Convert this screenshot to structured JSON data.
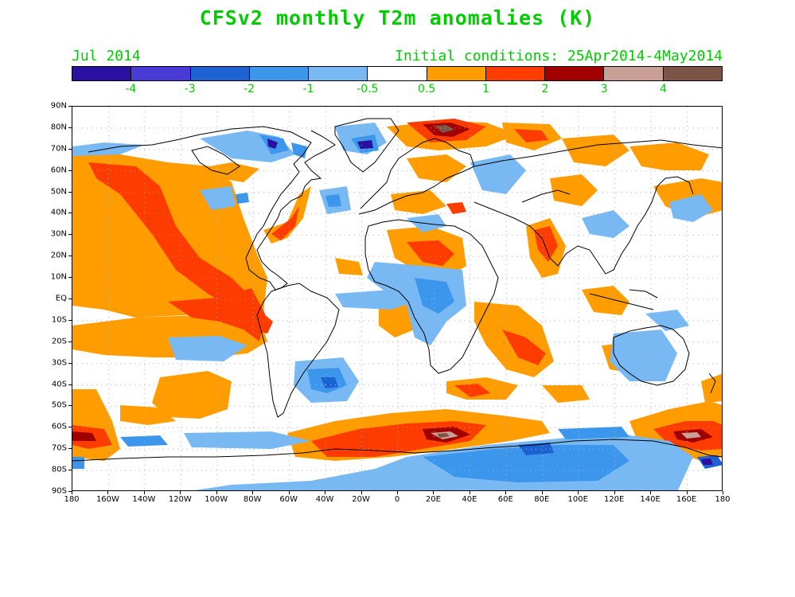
{
  "title": "CFSv2 monthly T2m anomalies (K)",
  "subtitle_left": "Jul 2014",
  "subtitle_right": "Initial conditions: 25Apr2014-4May2014",
  "colorbar": {
    "colors": [
      "#2b0fa0",
      "#4a3ad6",
      "#1e62d2",
      "#3c96ec",
      "#78b9f4",
      "#ffffff",
      "#ff9d00",
      "#ff3c00",
      "#a00000",
      "#c8a096",
      "#7d5546"
    ],
    "labels": [
      "-4",
      "-3",
      "-2",
      "-1",
      "-0.5",
      "0.5",
      "1",
      "2",
      "3",
      "4"
    ]
  },
  "lat_labels": [
    "90N",
    "80N",
    "70N",
    "60N",
    "50N",
    "40N",
    "30N",
    "20N",
    "10N",
    "EQ",
    "10S",
    "20S",
    "30S",
    "40S",
    "50S",
    "60S",
    "70S",
    "80S",
    "90S"
  ],
  "lon_labels": [
    "180",
    "160W",
    "140W",
    "120W",
    "100W",
    "80W",
    "60W",
    "40W",
    "20W",
    "0",
    "20E",
    "40E",
    "60E",
    "80E",
    "100E",
    "120E",
    "140E",
    "160E",
    "180"
  ]
}
